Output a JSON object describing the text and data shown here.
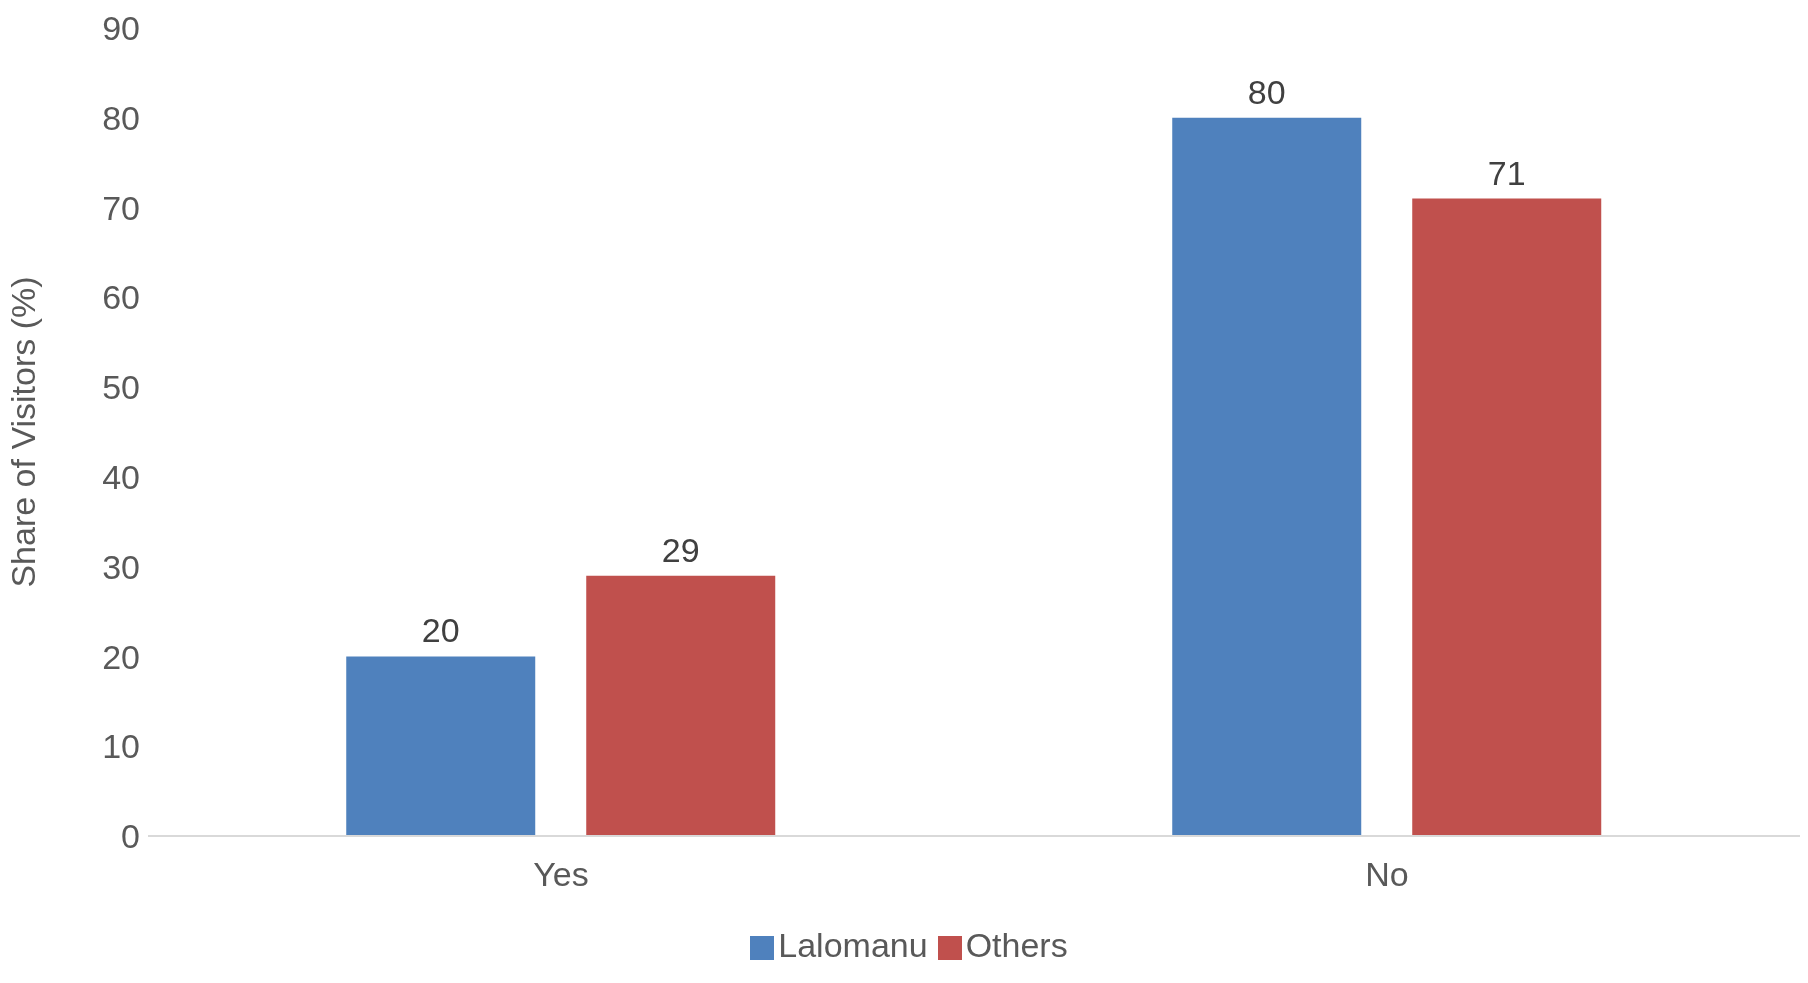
{
  "chart_data": {
    "type": "bar",
    "ylabel": "Share of Visitors (%)",
    "categories": [
      "Yes",
      "No"
    ],
    "series": [
      {
        "name": "Lalomanu",
        "color": "#4f81bd",
        "values": [
          20,
          80
        ]
      },
      {
        "name": "Others",
        "color": "#c0504d",
        "values": [
          29,
          71
        ]
      }
    ],
    "ylim": [
      0,
      90
    ],
    "yticks": [
      0,
      10,
      20,
      30,
      40,
      50,
      60,
      70,
      80,
      90
    ],
    "grid": false,
    "legend": "bottom",
    "data_labels": true
  }
}
